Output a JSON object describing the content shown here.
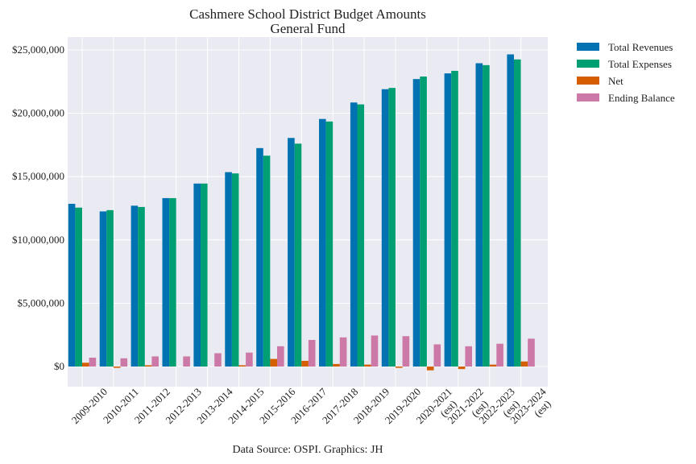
{
  "chart_data": {
    "type": "bar",
    "title": "Cashmere School District Budget Amounts",
    "subtitle": "General Fund",
    "xlabel": "",
    "ylabel": "",
    "ylim": [
      -1500000,
      25100000
    ],
    "yticks": [
      0,
      5000000,
      10000000,
      15000000,
      20000000,
      25000000
    ],
    "ytick_labels": [
      "$0",
      "$5,000,000",
      "$10,000,000",
      "$15,000,000",
      "$20,000,000",
      "$25,000,000"
    ],
    "grid": true,
    "legend_position": "outside-top-right",
    "categories": [
      "2009-2010",
      "2010-2011",
      "2011-2012",
      "2012-2013",
      "2013-2014",
      "2014-2015",
      "2015-2016",
      "2016-2017",
      "2017-2018",
      "2018-2019",
      "2019-2020",
      "2020-2021\n(est)",
      "2021-2022\n(est)",
      "2022-2023\n(est)",
      "2023-2024\n(est)"
    ],
    "series": [
      {
        "name": "Total Revenues",
        "color": "#0072B2",
        "values": [
          12850000,
          12250000,
          12700000,
          13300000,
          14450000,
          15350000,
          17250000,
          18050000,
          19550000,
          20850000,
          21900000,
          22700000,
          23150000,
          23950000,
          24650000
        ]
      },
      {
        "name": "Total Expenses",
        "color": "#009E73",
        "values": [
          12550000,
          12350000,
          12600000,
          13300000,
          14450000,
          15250000,
          16650000,
          17600000,
          19350000,
          20700000,
          22000000,
          22900000,
          23350000,
          23800000,
          24250000
        ]
      },
      {
        "name": "Net",
        "color": "#D55E00",
        "values": [
          300000,
          -100000,
          100000,
          0,
          0,
          100000,
          600000,
          450000,
          200000,
          150000,
          -100000,
          -300000,
          -200000,
          150000,
          400000
        ]
      },
      {
        "name": "Ending Balance",
        "color": "#CC79A7",
        "values": [
          700000,
          650000,
          800000,
          800000,
          1050000,
          1100000,
          1600000,
          2100000,
          2300000,
          2450000,
          2400000,
          1750000,
          1600000,
          1800000,
          2200000
        ]
      }
    ],
    "source_note": "Data Source: OSPI. Graphics: JH"
  },
  "colors": {
    "plot_background": "#EAEAF2",
    "grid": "#FFFFFF"
  }
}
